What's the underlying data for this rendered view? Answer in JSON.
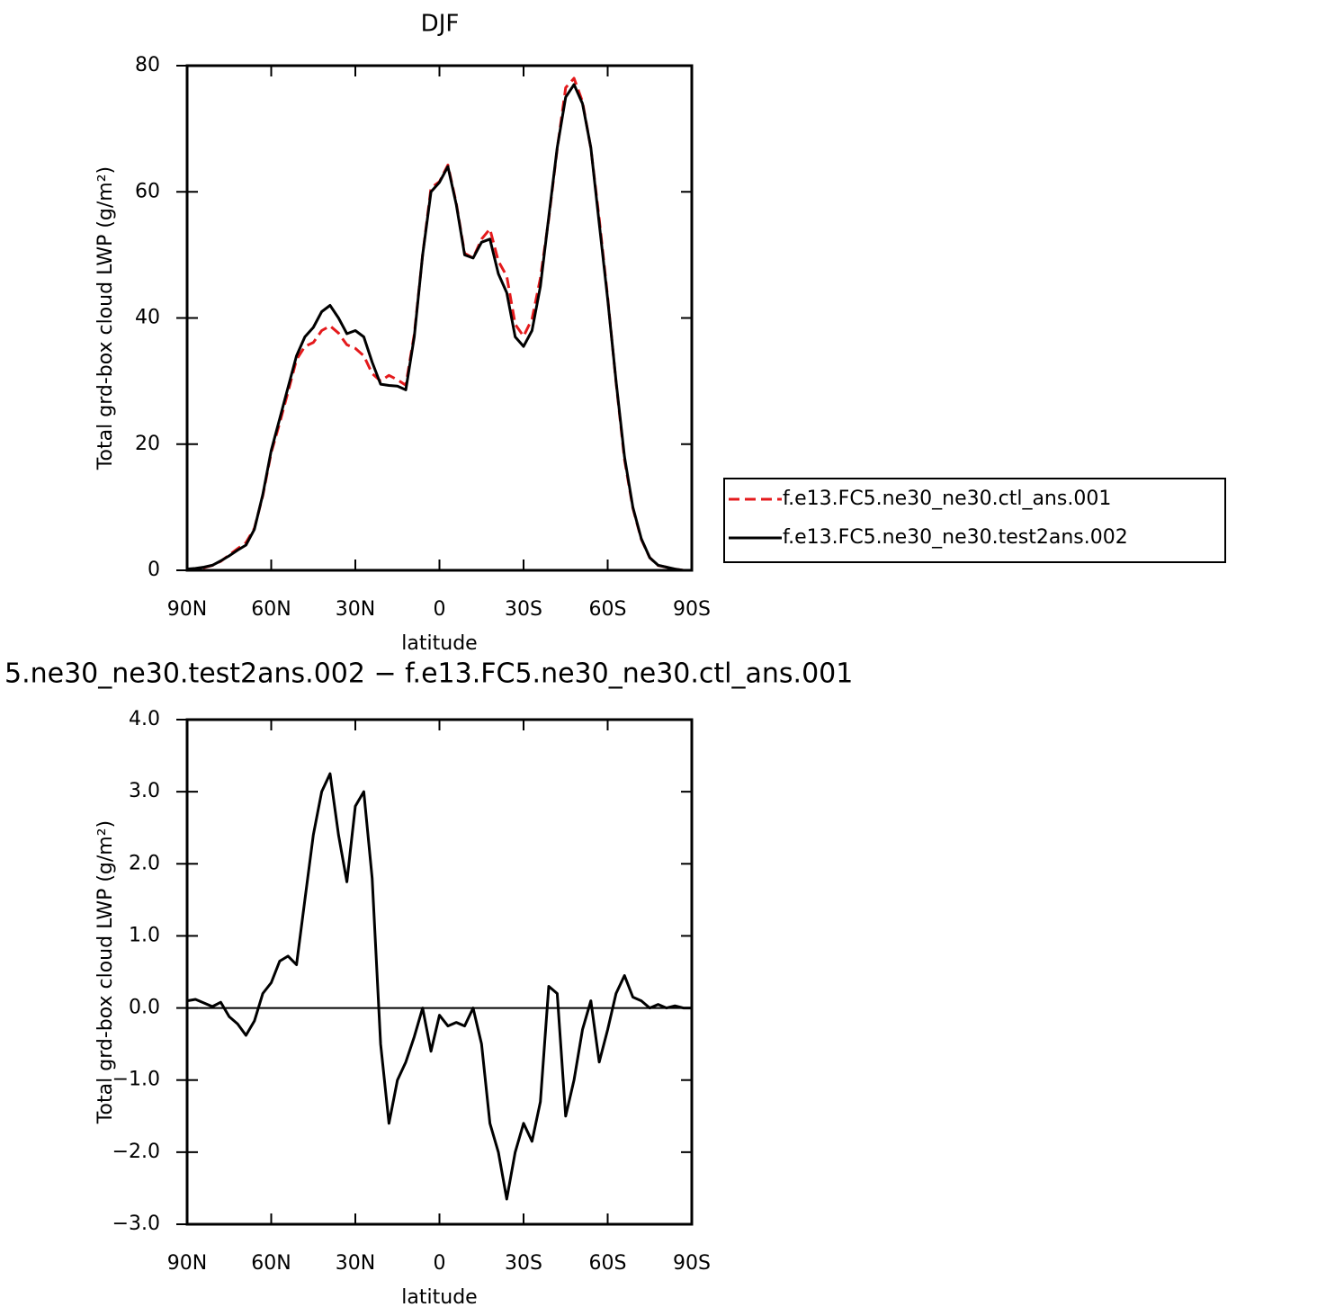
{
  "chart_data": [
    {
      "type": "line",
      "title": "DJF",
      "xlabel": "latitude",
      "ylabel": "Total grd-box cloud LWP (g/m²)",
      "x": [
        90,
        87,
        84,
        81,
        78,
        75,
        72,
        69,
        66,
        63,
        60,
        57,
        54,
        51,
        48,
        45,
        42,
        39,
        36,
        33,
        30,
        27,
        24,
        21,
        18,
        15,
        12,
        9,
        6,
        3,
        0,
        -3,
        -6,
        -9,
        -12,
        -15,
        -18,
        -21,
        -24,
        -27,
        -30,
        -33,
        -36,
        -39,
        -42,
        -45,
        -48,
        -51,
        -54,
        -57,
        -60,
        -63,
        -66,
        -69,
        -72,
        -75,
        -78,
        -81,
        -84,
        -87,
        -90
      ],
      "series": [
        {
          "name": "f.e13.FC5.ne30_ne30.ctl_ans.001",
          "color": "#e41a1c",
          "dashed": true,
          "values": [
            0.1,
            0.18,
            0.43,
            0.78,
            1.42,
            2.42,
            3.42,
            4.38,
            6.68,
            11.8,
            18.65,
            23.35,
            28.28,
            33.4,
            35.5,
            36.1,
            38,
            38.75,
            37.6,
            35.75,
            35.2,
            34,
            31.2,
            30,
            30.9,
            30.2,
            29.35,
            37.4,
            50,
            60.6,
            61.6,
            64.25,
            58.2,
            50.25,
            49.5,
            52.5,
            54.1,
            49,
            46.65,
            39,
            37.1,
            39.85,
            46.3,
            55.7,
            66.8,
            76.5,
            78,
            74.3,
            66.9,
            55.75,
            43.3,
            29.8,
            17.55,
            9.85,
            4.9,
            2,
            0.75,
            0.5,
            0.17,
            0,
            0
          ]
        },
        {
          "name": "f.e13.FC5.ne30_ne30.test2ans.002",
          "color": "#000000",
          "dashed": false,
          "values": [
            0.2,
            0.3,
            0.5,
            0.8,
            1.5,
            2.3,
            3.2,
            4,
            6.5,
            12,
            19,
            24,
            29,
            34,
            37,
            38.5,
            41,
            42,
            40,
            37.5,
            38,
            37,
            33,
            29.5,
            29.3,
            29.2,
            28.6,
            37,
            50,
            60,
            61.5,
            64,
            58,
            50,
            49.5,
            52,
            52.5,
            47,
            44,
            37,
            35.5,
            38,
            45,
            56,
            67,
            75,
            77,
            74,
            67,
            55,
            43,
            30,
            18,
            10,
            5,
            2,
            0.8,
            0.5,
            0.2,
            0,
            0
          ]
        }
      ],
      "xlim": [
        90,
        -90
      ],
      "xticks": [
        {
          "value": 90,
          "label": "90N"
        },
        {
          "value": 60,
          "label": "60N"
        },
        {
          "value": 30,
          "label": "30N"
        },
        0,
        {
          "value": -30,
          "label": "30S"
        },
        {
          "value": -60,
          "label": "60S"
        },
        {
          "value": -90,
          "label": "90S"
        }
      ],
      "ylim": [
        0,
        80
      ],
      "yticks": [
        0,
        20,
        40,
        60,
        80
      ],
      "legend": "right"
    },
    {
      "type": "line",
      "title": "5.ne30_ne30.test2ans.002 − f.e13.FC5.ne30_ne30.ctl_ans.001",
      "xlabel": "latitude",
      "ylabel": "Total grd-box cloud LWP (g/m²)",
      "x": [
        90,
        87,
        84,
        81,
        78,
        75,
        72,
        69,
        66,
        63,
        60,
        57,
        54,
        51,
        48,
        45,
        42,
        39,
        36,
        33,
        30,
        27,
        24,
        21,
        18,
        15,
        12,
        9,
        6,
        3,
        0,
        -3,
        -6,
        -9,
        -12,
        -15,
        -18,
        -21,
        -24,
        -27,
        -30,
        -33,
        -36,
        -39,
        -42,
        -45,
        -48,
        -51,
        -54,
        -57,
        -60,
        -63,
        -66,
        -69,
        -72,
        -75,
        -78,
        -81,
        -84,
        -87,
        -90
      ],
      "values": [
        0.1,
        0.12,
        0.07,
        0.02,
        0.08,
        -0.12,
        -0.22,
        -0.38,
        -0.18,
        0.2,
        0.35,
        0.65,
        0.72,
        0.6,
        1.5,
        2.4,
        3.0,
        3.25,
        2.4,
        1.75,
        2.8,
        3.0,
        1.8,
        -0.5,
        -1.6,
        -1.0,
        -0.75,
        -0.4,
        0.0,
        -0.6,
        -0.1,
        -0.25,
        -0.2,
        -0.25,
        0.0,
        -0.5,
        -1.6,
        -2.0,
        -2.65,
        -2.0,
        -1.6,
        -1.85,
        -1.3,
        0.3,
        0.2,
        -1.5,
        -1.0,
        -0.3,
        0.1,
        -0.75,
        -0.3,
        0.2,
        0.45,
        0.15,
        0.1,
        0.0,
        0.05,
        0.0,
        0.03,
        0.0,
        0.0
      ],
      "color": "#000000",
      "xlim": [
        90,
        -90
      ],
      "xticks": [
        {
          "value": 90,
          "label": "90N"
        },
        {
          "value": 60,
          "label": "60N"
        },
        {
          "value": 30,
          "label": "30N"
        },
        0,
        {
          "value": -30,
          "label": "30S"
        },
        {
          "value": -60,
          "label": "60S"
        },
        {
          "value": -90,
          "label": "90S"
        }
      ],
      "ylim": [
        -3,
        4
      ],
      "yticks": [
        {
          "value": -3,
          "label": "−3.0"
        },
        {
          "value": -2,
          "label": "−2.0"
        },
        {
          "value": -1,
          "label": "−1.0"
        },
        {
          "value": 0,
          "label": "0.0"
        },
        {
          "value": 1,
          "label": "1.0"
        },
        {
          "value": 2,
          "label": "2.0"
        },
        {
          "value": 3,
          "label": "3.0"
        },
        {
          "value": 4,
          "label": "4.0"
        }
      ],
      "zero_line": true
    }
  ]
}
